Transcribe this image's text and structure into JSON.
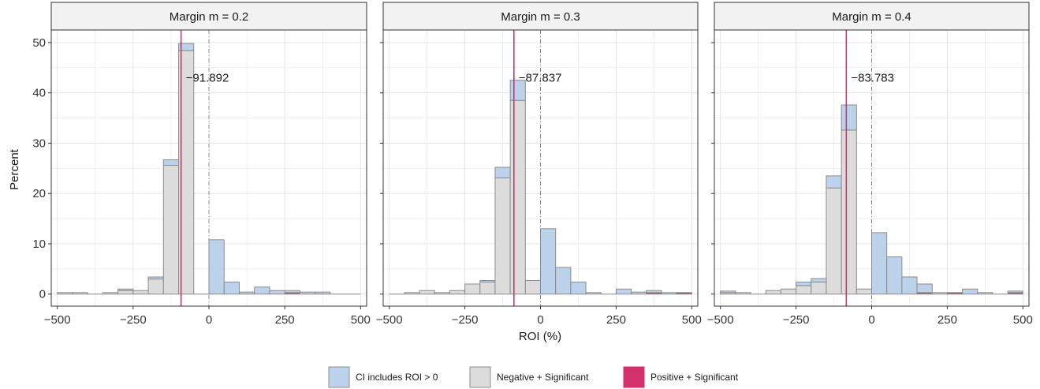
{
  "chart_data": {
    "type": "bar",
    "ylabel": "Percent",
    "xlabel": "ROI (%)",
    "xlim": [
      -520,
      520
    ],
    "ylim": [
      -2.4,
      52.5
    ],
    "xticks": [
      -500,
      -250,
      0,
      250,
      500
    ],
    "xtick_labels": [
      "−500",
      "−250",
      "0",
      "250",
      "500"
    ],
    "yticks": [
      0,
      10,
      20,
      30,
      40,
      50
    ],
    "ytick_labels": [
      "0",
      "10",
      "20",
      "30",
      "40",
      "50"
    ],
    "bin_starts": [
      -500,
      -450,
      -400,
      -350,
      -300,
      -250,
      -200,
      -150,
      -100,
      -50,
      0,
      50,
      100,
      150,
      200,
      250,
      300,
      350,
      400,
      450
    ],
    "bin_width": 50,
    "grid": true,
    "legend_position": "bottom",
    "colors": {
      "ci_includes": "#bcd2ea",
      "negative_significant": "#dcdcdc",
      "positive_significant": "#d5306e",
      "bar_outline": "#8c8c8c",
      "reference_line": "#8a8a8a",
      "panel_background": "#ffffff",
      "grid": "#e6e6e6",
      "strip_background": "#f2f2f2"
    },
    "legend": [
      {
        "key": "ci_includes",
        "label": "CI includes ROI > 0"
      },
      {
        "key": "negative_significant",
        "label": "Negative + Significant"
      },
      {
        "key": "positive_significant",
        "label": "Positive + Significant"
      }
    ],
    "panels": [
      {
        "title": "Margin m = 0.2",
        "mean_line": -91.892,
        "mean_label": "−91.892",
        "zero_line": 0,
        "negative_significant": [
          0.3,
          0.3,
          0,
          0.3,
          0.7,
          0.7,
          3.0,
          25.6,
          48.4,
          0,
          0,
          0,
          0,
          0,
          0,
          0,
          0,
          0,
          0,
          0
        ],
        "ci_includes": [
          0,
          0,
          0,
          0,
          0.3,
          0,
          0.4,
          1.1,
          1.4,
          0,
          10.8,
          2.4,
          0.4,
          1.4,
          0.7,
          0.4,
          0.4,
          0.4,
          0,
          0
        ],
        "positive_significant": [
          0,
          0,
          0,
          0,
          0,
          0,
          0,
          0,
          0,
          0,
          0,
          0,
          0,
          0,
          0,
          0.3,
          0,
          0,
          0,
          0
        ]
      },
      {
        "title": "Margin m = 0.3",
        "mean_line": -87.837,
        "mean_label": "−87.837",
        "zero_line": 0,
        "negative_significant": [
          0,
          0.3,
          0.7,
          0.3,
          0.7,
          2.0,
          2.4,
          23.1,
          38.5,
          2.7,
          0,
          0,
          0,
          0,
          0,
          0,
          0,
          0,
          0,
          0
        ],
        "ci_includes": [
          0,
          0,
          0,
          0,
          0,
          0,
          0.3,
          2.1,
          4.0,
          0,
          13.0,
          5.3,
          2.4,
          0.3,
          0,
          1.0,
          0.4,
          0.4,
          0.3,
          0
        ],
        "positive_significant": [
          0,
          0,
          0,
          0,
          0,
          0,
          0,
          0,
          0,
          0,
          0,
          0,
          0,
          0,
          0,
          0,
          0,
          0.3,
          0,
          0.3
        ]
      },
      {
        "title": "Margin m = 0.4",
        "mean_line": -83.783,
        "mean_label": "−83.783",
        "zero_line": 0,
        "negative_significant": [
          0.3,
          0.3,
          0,
          0.7,
          1.0,
          1.7,
          2.4,
          21.1,
          32.6,
          1.0,
          0,
          0,
          0,
          0,
          0,
          0,
          0,
          0,
          0,
          0
        ],
        "ci_includes": [
          0.3,
          0,
          0,
          0,
          0,
          0.7,
          0.7,
          2.4,
          5.0,
          0,
          12.2,
          7.4,
          3.4,
          1.7,
          0.3,
          0,
          1.0,
          0.3,
          0,
          0.3
        ],
        "positive_significant": [
          0,
          0,
          0,
          0,
          0,
          0,
          0,
          0,
          0,
          0,
          0,
          0,
          0,
          0.3,
          0,
          0.3,
          0,
          0,
          0,
          0.3
        ]
      }
    ]
  }
}
